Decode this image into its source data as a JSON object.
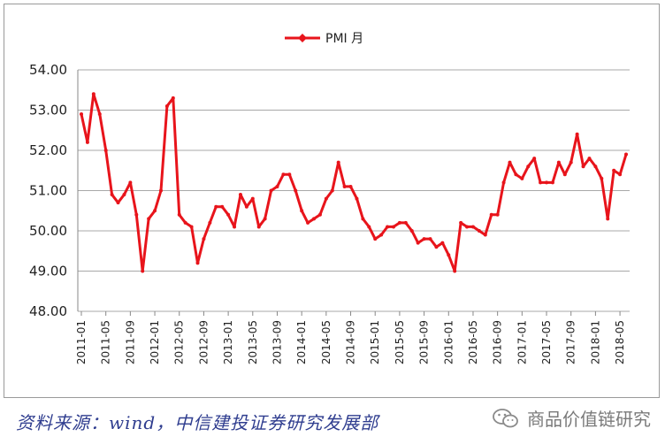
{
  "chart_data": {
    "type": "line",
    "series": [
      {
        "name": "PMI 月",
        "color": "#e8141b",
        "values": [
          52.9,
          52.2,
          53.4,
          52.9,
          52.0,
          50.9,
          50.7,
          50.9,
          51.2,
          50.4,
          49.0,
          50.3,
          50.5,
          51.0,
          53.1,
          53.3,
          50.4,
          50.2,
          50.1,
          49.2,
          49.8,
          50.2,
          50.6,
          50.6,
          50.4,
          50.1,
          50.9,
          50.6,
          50.8,
          50.1,
          50.3,
          51.0,
          51.1,
          51.4,
          51.4,
          51.0,
          50.5,
          50.2,
          50.3,
          50.4,
          50.8,
          51.0,
          51.7,
          51.1,
          51.1,
          50.8,
          50.3,
          50.1,
          49.8,
          49.9,
          50.1,
          50.1,
          50.2,
          50.2,
          50.0,
          49.7,
          49.8,
          49.8,
          49.6,
          49.7,
          49.4,
          49.0,
          50.2,
          50.1,
          50.1,
          50.0,
          49.9,
          50.4,
          50.4,
          51.2,
          51.7,
          51.4,
          51.3,
          51.6,
          51.8,
          51.2,
          51.2,
          51.2,
          51.7,
          51.4,
          51.7,
          52.4,
          51.6,
          51.8,
          51.6,
          51.3,
          50.3,
          51.5,
          51.4,
          51.9
        ]
      }
    ],
    "x_tick_labels": [
      "2011-01",
      "2011-05",
      "2011-09",
      "2012-01",
      "2012-05",
      "2012-09",
      "2013-01",
      "2013-05",
      "2013-09",
      "2014-01",
      "2014-05",
      "2014-09",
      "2015-01",
      "2015-05",
      "2015-09",
      "2016-01",
      "2016-05",
      "2016-09",
      "2017-01",
      "2017-05",
      "2017-09",
      "2018-01",
      "2018-05"
    ],
    "y_tick_labels": [
      "48.00",
      "49.00",
      "50.00",
      "51.00",
      "52.00",
      "53.00",
      "54.00"
    ],
    "ylim": [
      48,
      54
    ],
    "grid": true,
    "legend_position": "top-center"
  },
  "legend": {
    "label": "PMI 月"
  },
  "footer": {
    "source": "资料来源：wind，中信建投证券研究发展部",
    "watermark": "商品价值链研究"
  }
}
